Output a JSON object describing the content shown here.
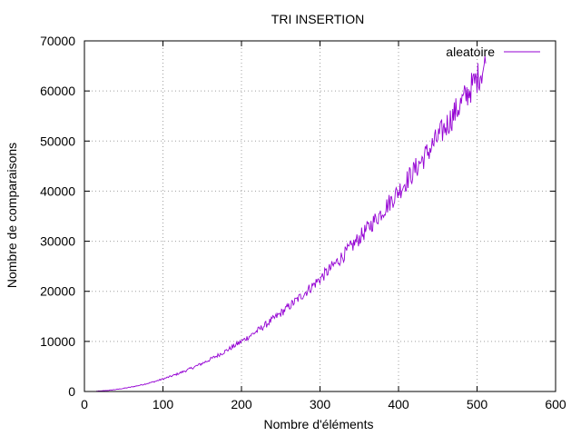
{
  "chart_data": {
    "type": "line",
    "title": "TRI INSERTION",
    "xlabel": "Nombre d'éléments",
    "ylabel": "Nombre de comparaisons",
    "xlim": [
      0,
      600
    ],
    "ylim": [
      0,
      70000
    ],
    "x_ticks": [
      0,
      100,
      200,
      300,
      400,
      500,
      600
    ],
    "y_ticks": [
      0,
      10000,
      20000,
      30000,
      40000,
      50000,
      60000,
      70000
    ],
    "x_tick_labels": [
      "0",
      "100",
      "200",
      "300",
      "400",
      "500",
      "600"
    ],
    "y_tick_labels": [
      "0",
      "10000",
      "20000",
      "30000",
      "40000",
      "50000",
      "60000",
      "70000"
    ],
    "grid": true,
    "legend": {
      "position": "top-right"
    },
    "series": [
      {
        "name": "aleatoire",
        "color": "#9400d3",
        "x_range": [
          15,
          511
        ],
        "approx_formula": "y ≈ n²/4 with random noise",
        "points": [
          [
            15,
            60
          ],
          [
            25,
            170
          ],
          [
            50,
            650
          ],
          [
            75,
            1400
          ],
          [
            100,
            2500
          ],
          [
            125,
            3900
          ],
          [
            150,
            5600
          ],
          [
            175,
            7650
          ],
          [
            200,
            10000
          ],
          [
            225,
            12700
          ],
          [
            250,
            15600
          ],
          [
            275,
            18900
          ],
          [
            300,
            22500
          ],
          [
            325,
            26400
          ],
          [
            350,
            30600
          ],
          [
            375,
            35200
          ],
          [
            400,
            40000
          ],
          [
            425,
            45200
          ],
          [
            450,
            50600
          ],
          [
            475,
            56400
          ],
          [
            500,
            62500
          ],
          [
            505,
            63800
          ],
          [
            510,
            65000
          ],
          [
            511,
            65300
          ]
        ]
      }
    ]
  }
}
